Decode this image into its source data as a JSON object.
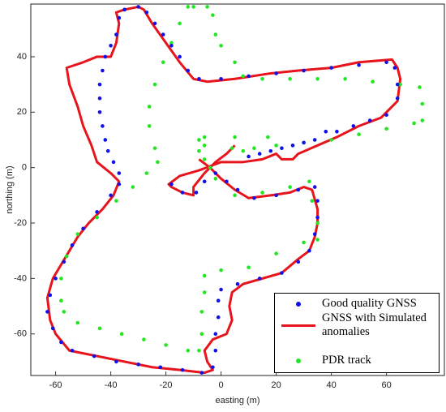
{
  "chart_data": {
    "type": "scatter",
    "xlabel": "easting (m)",
    "ylabel": "northing (m)",
    "xlim": [
      -69,
      81
    ],
    "ylim": [
      -75,
      59
    ],
    "xticks": [
      -60,
      -40,
      -20,
      0,
      20,
      40,
      60
    ],
    "yticks": [
      -60,
      -40,
      -20,
      0,
      20,
      40
    ],
    "grid": false,
    "legend": "lower right",
    "series": [
      {
        "name": "Good quality GNSS",
        "color": "#1010e8",
        "mode": "markers",
        "x": [
          -30,
          -27,
          -24,
          -21,
          -18,
          -15,
          -12,
          -8,
          0,
          10,
          20,
          30,
          40,
          50,
          60,
          63,
          64,
          64,
          60,
          54,
          48,
          42,
          38,
          34,
          30,
          26,
          22,
          18,
          14,
          10,
          -35,
          -37,
          -38,
          -40,
          -42,
          -43,
          -44,
          -44,
          -44,
          -43,
          -42,
          -41,
          -39,
          -37,
          -37,
          -40,
          -45,
          -50,
          -54,
          -57,
          -60,
          -62,
          -63,
          -61,
          -58,
          -54,
          -46,
          -38,
          -30,
          -22,
          -14,
          -7,
          -3,
          -2,
          -2,
          -1,
          -1,
          0,
          6,
          14,
          22,
          28,
          32,
          34,
          35,
          35,
          34,
          28,
          20,
          12,
          6,
          2,
          -2,
          -6,
          -9,
          -14,
          -18
        ],
        "values": [
          58,
          56,
          52,
          48,
          44,
          40,
          35,
          32,
          32,
          33,
          34,
          35,
          36,
          37,
          38,
          36,
          30,
          25,
          19,
          17,
          15,
          13,
          13,
          10,
          9,
          8,
          7,
          6,
          5,
          4,
          57,
          54,
          48,
          44,
          40,
          35,
          30,
          25,
          20,
          15,
          10,
          6,
          2,
          -2,
          -6,
          -10,
          -16,
          -22,
          -28,
          -34,
          -40,
          -46,
          -52,
          -58,
          -63,
          -66,
          -68,
          -70,
          -71,
          -72,
          -73,
          -74,
          -72,
          -66,
          -60,
          -54,
          -48,
          -44,
          -42,
          -40,
          -38,
          -34,
          -30,
          -24,
          -18,
          -12,
          -7,
          -8,
          -10,
          -11,
          -8,
          -5,
          -2,
          -5,
          -9,
          -9,
          -6
        ]
      },
      {
        "name": "GNSS with Simulated anomalies",
        "color": "#e8141b",
        "mode": "line",
        "x": [
          5,
          2,
          -2,
          -6,
          -10,
          -10,
          -14,
          -18,
          -19,
          -15,
          -8,
          0,
          8,
          15,
          20,
          22,
          26,
          28,
          35,
          42,
          50,
          58,
          64,
          65,
          64,
          62,
          50,
          40,
          28,
          18,
          5,
          -5,
          -10,
          -15,
          -20,
          -25,
          -28,
          -30,
          -35,
          -38,
          -37,
          -38,
          -40,
          -45,
          -50,
          -56,
          -55,
          -52,
          -50,
          -47,
          -45,
          -40,
          -37,
          -39,
          -43,
          -48,
          -52,
          -55,
          -58,
          -61,
          -63,
          -62,
          -60,
          -55,
          -45,
          -35,
          -25,
          -15,
          -6,
          -3,
          -5,
          -6,
          -3,
          2,
          4,
          3,
          4,
          8,
          15,
          22,
          28,
          32,
          34,
          35,
          35,
          33,
          30,
          25,
          18,
          10,
          5,
          0,
          -4,
          -8
        ],
        "values": [
          8,
          5,
          2,
          -2,
          -7,
          -10,
          -9,
          -7,
          -6,
          -3,
          -1,
          2,
          2,
          3,
          5,
          3,
          3,
          5,
          8,
          11,
          15,
          18,
          24,
          32,
          36,
          39,
          38,
          36,
          35,
          34,
          32,
          31,
          32,
          38,
          45,
          52,
          57,
          58,
          57,
          56,
          52,
          45,
          40,
          40,
          38,
          36,
          30,
          22,
          15,
          8,
          2,
          -2,
          -5,
          -10,
          -15,
          -20,
          -25,
          -30,
          -35,
          -40,
          -47,
          -55,
          -60,
          -66,
          -68,
          -70,
          -72,
          -73,
          -74,
          -73,
          -70,
          -66,
          -62,
          -60,
          -55,
          -50,
          -45,
          -42,
          -40,
          -38,
          -33,
          -30,
          -25,
          -20,
          -15,
          -8,
          -7,
          -9,
          -10,
          -11,
          -8,
          -4,
          0,
          3
        ]
      },
      {
        "name": "PDR track",
        "color": "#22e622",
        "mode": "markers",
        "x": [
          -10,
          -5,
          -3,
          -2,
          0,
          5,
          8,
          15,
          25,
          35,
          45,
          55,
          65,
          72,
          73,
          73,
          70,
          60,
          50,
          40,
          30,
          20,
          12,
          8,
          4,
          -6,
          -8,
          -6,
          5,
          17,
          -12,
          -15,
          -18,
          -21,
          -24,
          -26,
          -26,
          -24,
          -23,
          -27,
          -32,
          -38,
          -45,
          -52,
          -56,
          -58,
          -58,
          -57,
          -52,
          -44,
          -36,
          -28,
          -20,
          -12,
          -8,
          -7,
          -7,
          -6,
          -6,
          0,
          10,
          20,
          30,
          35,
          35,
          33,
          32,
          25,
          15,
          5,
          -2,
          -4,
          -6,
          -8
        ],
        "values": [
          58,
          58,
          55,
          48,
          44,
          38,
          33,
          32,
          32,
          32,
          32,
          31,
          30,
          29,
          23,
          17,
          16,
          14,
          12,
          10,
          9,
          8,
          7,
          6,
          7,
          8,
          10,
          11,
          11,
          11,
          58,
          52,
          45,
          38,
          30,
          22,
          15,
          7,
          2,
          -2,
          -7,
          -12,
          -18,
          -24,
          -32,
          -40,
          -48,
          -52,
          -56,
          -58,
          -60,
          -62,
          -64,
          -66,
          -66,
          -60,
          -52,
          -45,
          -39,
          -37,
          -36,
          -31,
          -27,
          -26,
          -20,
          -12,
          -5,
          -7,
          -9,
          -10,
          -4,
          0,
          3,
          6
        ]
      }
    ]
  }
}
